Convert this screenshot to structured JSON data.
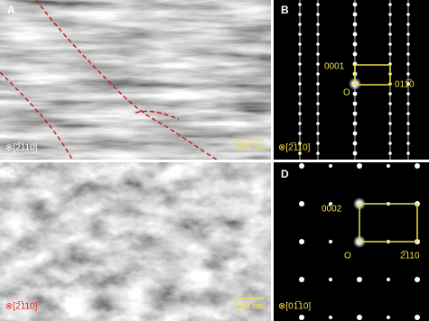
{
  "panels": [
    {
      "letter": "A",
      "zone_axis": "⊗[2̅110]",
      "scale_bar": "100 nm"
    },
    {
      "letter": "B",
      "zone_axis": "⊗[2̅110]",
      "spots": [
        "0001",
        "O",
        "011̅0"
      ]
    },
    {
      "letter": "C",
      "zone_axis": "⊗[2̅110]",
      "scale_bar": "100 nm"
    },
    {
      "letter": "D",
      "zone_axis": "⊗[01̅10]",
      "spots": [
        "0002",
        "O",
        "2̅110"
      ]
    }
  ]
}
